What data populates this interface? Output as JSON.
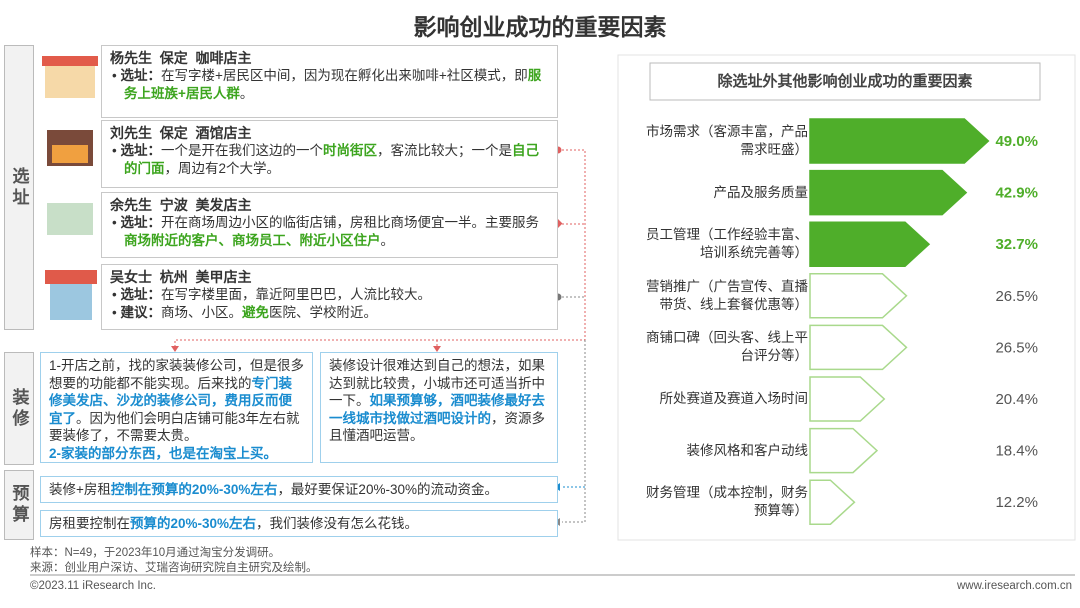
{
  "title": "影响创业成功的重要因素",
  "sections": [
    "选址",
    "装修",
    "预算"
  ],
  "cards": [
    {
      "header": "杨先生  保定  咖啡店主",
      "items": [
        {
          "label": "选址：",
          "runs": [
            {
              "text": "在写字楼+居民区中间，因为现在孵化出来咖啡+社区模式，即"
            },
            {
              "text": "服务上班族+居民人群",
              "em": true
            },
            {
              "text": "。"
            }
          ]
        }
      ]
    },
    {
      "header": "刘先生  保定  酒馆店主",
      "items": [
        {
          "label": "选址：",
          "runs": [
            {
              "text": "一个是开在我们这边的一个"
            },
            {
              "text": "时尚街区",
              "em": true
            },
            {
              "text": "，客流比较大；一个是"
            },
            {
              "text": "自己的门面",
              "em": true
            },
            {
              "text": "，周边有2个大学。"
            }
          ]
        }
      ]
    },
    {
      "header": "余先生  宁波  美发店主",
      "items": [
        {
          "label": "选址：",
          "runs": [
            {
              "text": "开在商场周边小区的临街店铺，房租比商场便宜一半。主要服务"
            },
            {
              "text": "商场附近的客户、商场员工、附近小区住户",
              "em": true
            },
            {
              "text": "。"
            }
          ]
        }
      ]
    },
    {
      "header": "吴女士  杭州  美甲店主",
      "items": [
        {
          "label": "选址：",
          "runs": [
            {
              "text": "在写字楼里面，靠近阿里巴巴，人流比较大。"
            }
          ]
        },
        {
          "label": "建议：",
          "runs": [
            {
              "text": "商场、小区。"
            },
            {
              "text": "避免",
              "em": true
            },
            {
              "text": "医院、学校附近。"
            }
          ]
        }
      ]
    }
  ],
  "renovation": [
    {
      "paragraphs": [
        [
          {
            "text": "1-开店之前，找的家装装修公司，但是很多想要的功能都不能实现。后来找的"
          },
          {
            "text": "专门装修美发店、沙龙的装修公司，费用反而便宜了",
            "em": true
          },
          {
            "text": "。因为他们会明白店铺可能3年左右就要装修了，不需要太贵。"
          }
        ],
        [
          {
            "text": "2-家装的部分东西，也是在淘宝上买。",
            "em": true
          }
        ]
      ]
    },
    {
      "paragraphs": [
        [
          {
            "text": "装修设计很难达到自己的想法，如果达到就比较贵，小城市还可适当折中一下。"
          },
          {
            "text": "如果预算够，酒吧装修最好去一线城市找做过酒吧设计的",
            "em": true
          },
          {
            "text": "，资源多且懂酒吧运营。"
          }
        ]
      ]
    }
  ],
  "budget": [
    [
      {
        "text": "装修+房租"
      },
      {
        "text": "控制在预算的20%-30%左右",
        "em": true
      },
      {
        "text": "，最好要保证20%-30%的流动资金。"
      }
    ],
    [
      {
        "text": "房租要控制在"
      },
      {
        "text": "预算的20%-30%左右",
        "em": true
      },
      {
        "text": "，我们装修没有怎么花钱。"
      }
    ]
  ],
  "notes": [
    "样本：N=49，于2023年10月通过淘宝分发调研。",
    "来源：创业用户深访、艾瑞咨询研究院自主研究及绘制。"
  ],
  "footer": {
    "left": "©2023.11 iResearch Inc.",
    "right": "www.iresearch.com.cn"
  },
  "chart_data": {
    "type": "bar",
    "orientation": "horizontal",
    "title": "除选址外其他影响创业成功的重要因素",
    "categories": [
      "市场需求（客源丰富，产品需求旺盛）",
      "产品及服务质量",
      "员工管理（工作经验丰富、培训系统完善等）",
      "营销推广（广告宣传、直播带货、线上套餐优惠等）",
      "商铺口碑（回头客、线上平台评分等）",
      "所处赛道及赛道入场时间",
      "装修风格和客户动线",
      "财务管理（成本控制，财务预算等）"
    ],
    "values": [
      49.0,
      42.9,
      32.7,
      26.5,
      26.5,
      20.4,
      18.4,
      12.2
    ],
    "value_labels": [
      "49.0%",
      "42.9%",
      "32.7%",
      "26.5%",
      "26.5%",
      "20.4%",
      "18.4%",
      "12.2%"
    ],
    "colors": [
      "#4fae2a",
      "#4fae2a",
      "#4fae2a",
      "#ffffff",
      "#ffffff",
      "#ffffff",
      "#ffffff",
      "#ffffff"
    ],
    "outline": "#a9d98c",
    "xlim": [
      0,
      50
    ]
  }
}
